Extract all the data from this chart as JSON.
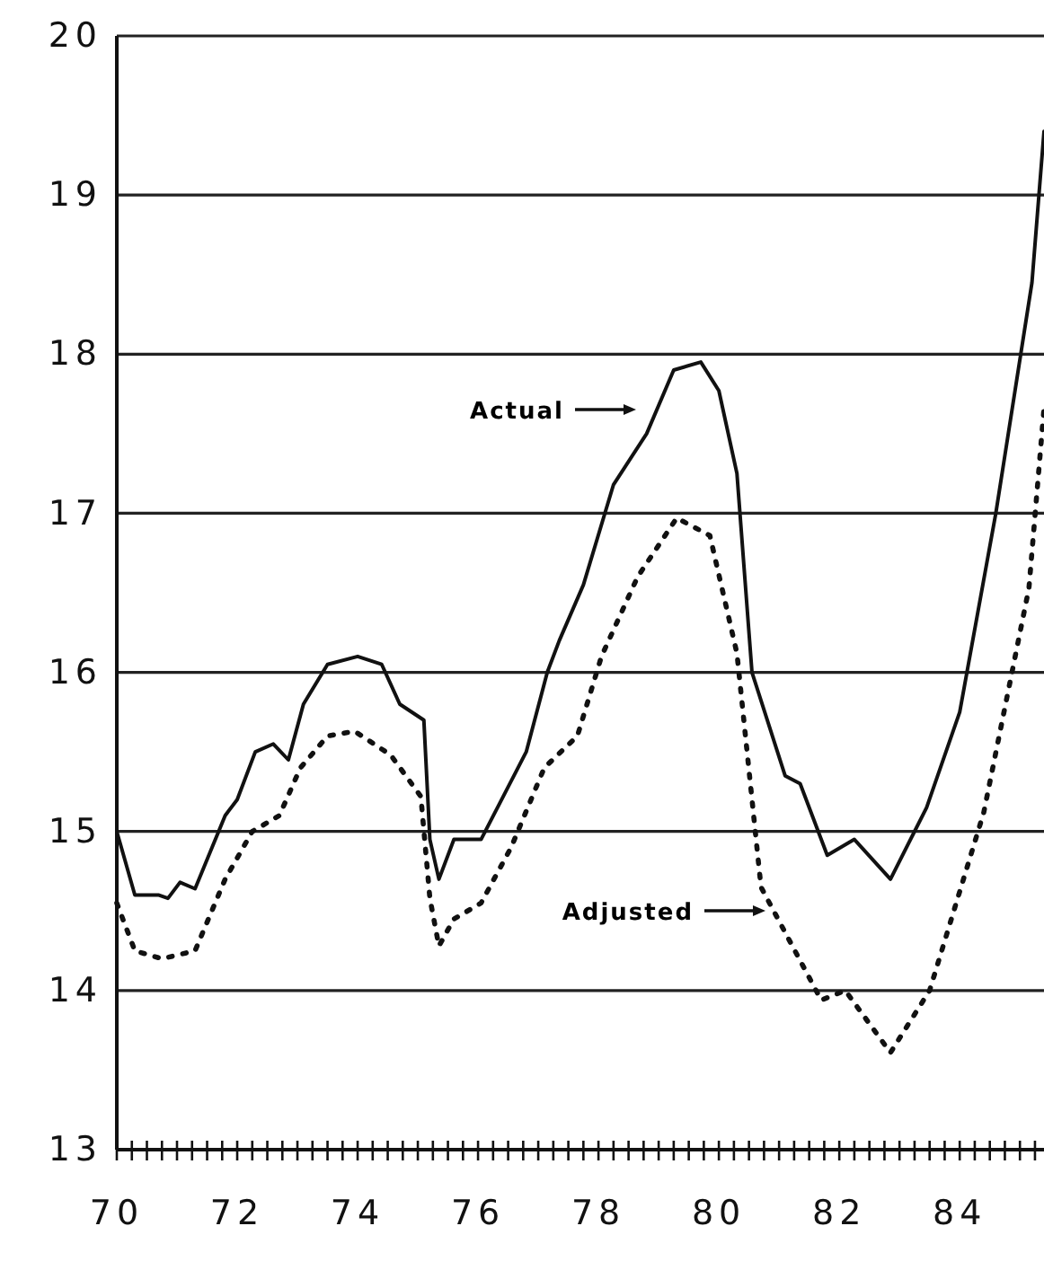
{
  "chart_data": {
    "type": "line",
    "xlim": [
      70,
      85.4
    ],
    "ylim": [
      13,
      20
    ],
    "xticks": [
      70,
      {
        "value": 70.25,
        "label": null
      },
      {
        "value": 70.5,
        "label": null
      },
      {
        "value": 70.75,
        "label": null
      },
      {
        "value": 71,
        "label": null
      },
      {
        "value": 71.25,
        "label": null
      },
      {
        "value": 71.5,
        "label": null
      },
      {
        "value": 71.75,
        "label": null
      },
      72,
      {
        "value": 72.25,
        "label": null
      },
      {
        "value": 72.5,
        "label": null
      },
      {
        "value": 72.75,
        "label": null
      },
      {
        "value": 73,
        "label": null
      },
      {
        "value": 73.25,
        "label": null
      },
      {
        "value": 73.5,
        "label": null
      },
      {
        "value": 73.75,
        "label": null
      },
      74,
      {
        "value": 74.25,
        "label": null
      },
      {
        "value": 74.5,
        "label": null
      },
      {
        "value": 74.75,
        "label": null
      },
      {
        "value": 75,
        "label": null
      },
      {
        "value": 75.25,
        "label": null
      },
      {
        "value": 75.5,
        "label": null
      },
      {
        "value": 75.75,
        "label": null
      },
      76,
      {
        "value": 76.25,
        "label": null
      },
      {
        "value": 76.5,
        "label": null
      },
      {
        "value": 76.75,
        "label": null
      },
      {
        "value": 77,
        "label": null
      },
      {
        "value": 77.25,
        "label": null
      },
      {
        "value": 77.5,
        "label": null
      },
      {
        "value": 77.75,
        "label": null
      },
      78,
      {
        "value": 78.25,
        "label": null
      },
      {
        "value": 78.5,
        "label": null
      },
      {
        "value": 78.75,
        "label": null
      },
      {
        "value": 79,
        "label": null
      },
      {
        "value": 79.25,
        "label": null
      },
      {
        "value": 79.5,
        "label": null
      },
      {
        "value": 79.75,
        "label": null
      },
      80,
      {
        "value": 80.25,
        "label": null
      },
      {
        "value": 80.5,
        "label": null
      },
      {
        "value": 80.75,
        "label": null
      },
      {
        "value": 81,
        "label": null
      },
      {
        "value": 81.25,
        "label": null
      },
      {
        "value": 81.5,
        "label": null
      },
      {
        "value": 81.75,
        "label": null
      },
      82,
      {
        "value": 82.25,
        "label": null
      },
      {
        "value": 82.5,
        "label": null
      },
      {
        "value": 82.75,
        "label": null
      },
      {
        "value": 83,
        "label": null
      },
      {
        "value": 83.25,
        "label": null
      },
      {
        "value": 83.5,
        "label": null
      },
      {
        "value": 83.75,
        "label": null
      },
      84,
      {
        "value": 84.25,
        "label": null
      },
      {
        "value": 84.5,
        "label": null
      },
      {
        "value": 84.75,
        "label": null
      },
      {
        "value": 85,
        "label": null
      },
      {
        "value": 85.25,
        "label": null
      }
    ],
    "yticks": [
      13,
      14,
      15,
      16,
      17,
      18,
      19,
      20
    ],
    "grid": "y",
    "marker": "none",
    "series": [
      {
        "color": "#111111",
        "line_style": "solid",
        "x": [
          70,
          70.3,
          70.7,
          70.85,
          71.05,
          71.3,
          71.8,
          72,
          72.3,
          72.6,
          72.85,
          73.1,
          73.5,
          74,
          74.4,
          74.7,
          75.1,
          75.2,
          75.35,
          75.6,
          76.05,
          76.8,
          77.15,
          77.35,
          77.75,
          78.25,
          78.8,
          79.25,
          79.7,
          80,
          80.3,
          80.55,
          81.1,
          81.35,
          81.8,
          82.25,
          82.85,
          83.45,
          84,
          84.6,
          85.2,
          85.4
        ],
        "values": [
          15,
          14.6,
          14.6,
          14.58,
          14.68,
          14.64,
          15.1,
          15.2,
          15.5,
          15.55,
          15.45,
          15.8,
          16.05,
          16.1,
          16.05,
          15.8,
          15.7,
          14.95,
          14.7,
          14.95,
          14.95,
          15.5,
          16,
          16.2,
          16.55,
          17.18,
          17.5,
          17.9,
          17.95,
          17.77,
          17.25,
          16,
          15.35,
          15.3,
          14.85,
          14.95,
          14.7,
          15.15,
          15.75,
          17,
          18.45,
          19.4
        ]
      },
      {
        "color": "#111111",
        "line_style": "dotted",
        "x": [
          70,
          70.3,
          70.75,
          71.3,
          71.8,
          72.25,
          72.7,
          73.05,
          73.5,
          73.95,
          74.55,
          75.05,
          75.2,
          75.35,
          75.6,
          76.05,
          76.55,
          77.1,
          77.65,
          78.05,
          78.65,
          79.3,
          79.85,
          80.3,
          80.7,
          81.7,
          82.1,
          82.85,
          83.5,
          84.4,
          85.15,
          85.4
        ],
        "values": [
          14.55,
          14.25,
          14.2,
          14.25,
          14.7,
          15,
          15.1,
          15.4,
          15.6,
          15.63,
          15.48,
          15.22,
          14.58,
          14.28,
          14.45,
          14.55,
          14.9,
          15.4,
          15.6,
          16.1,
          16.6,
          16.97,
          16.86,
          16.12,
          14.65,
          13.94,
          14,
          13.61,
          14,
          15.12,
          16.53,
          17.66
        ]
      }
    ],
    "annotations": [
      "Actual",
      "Adjusted"
    ]
  }
}
